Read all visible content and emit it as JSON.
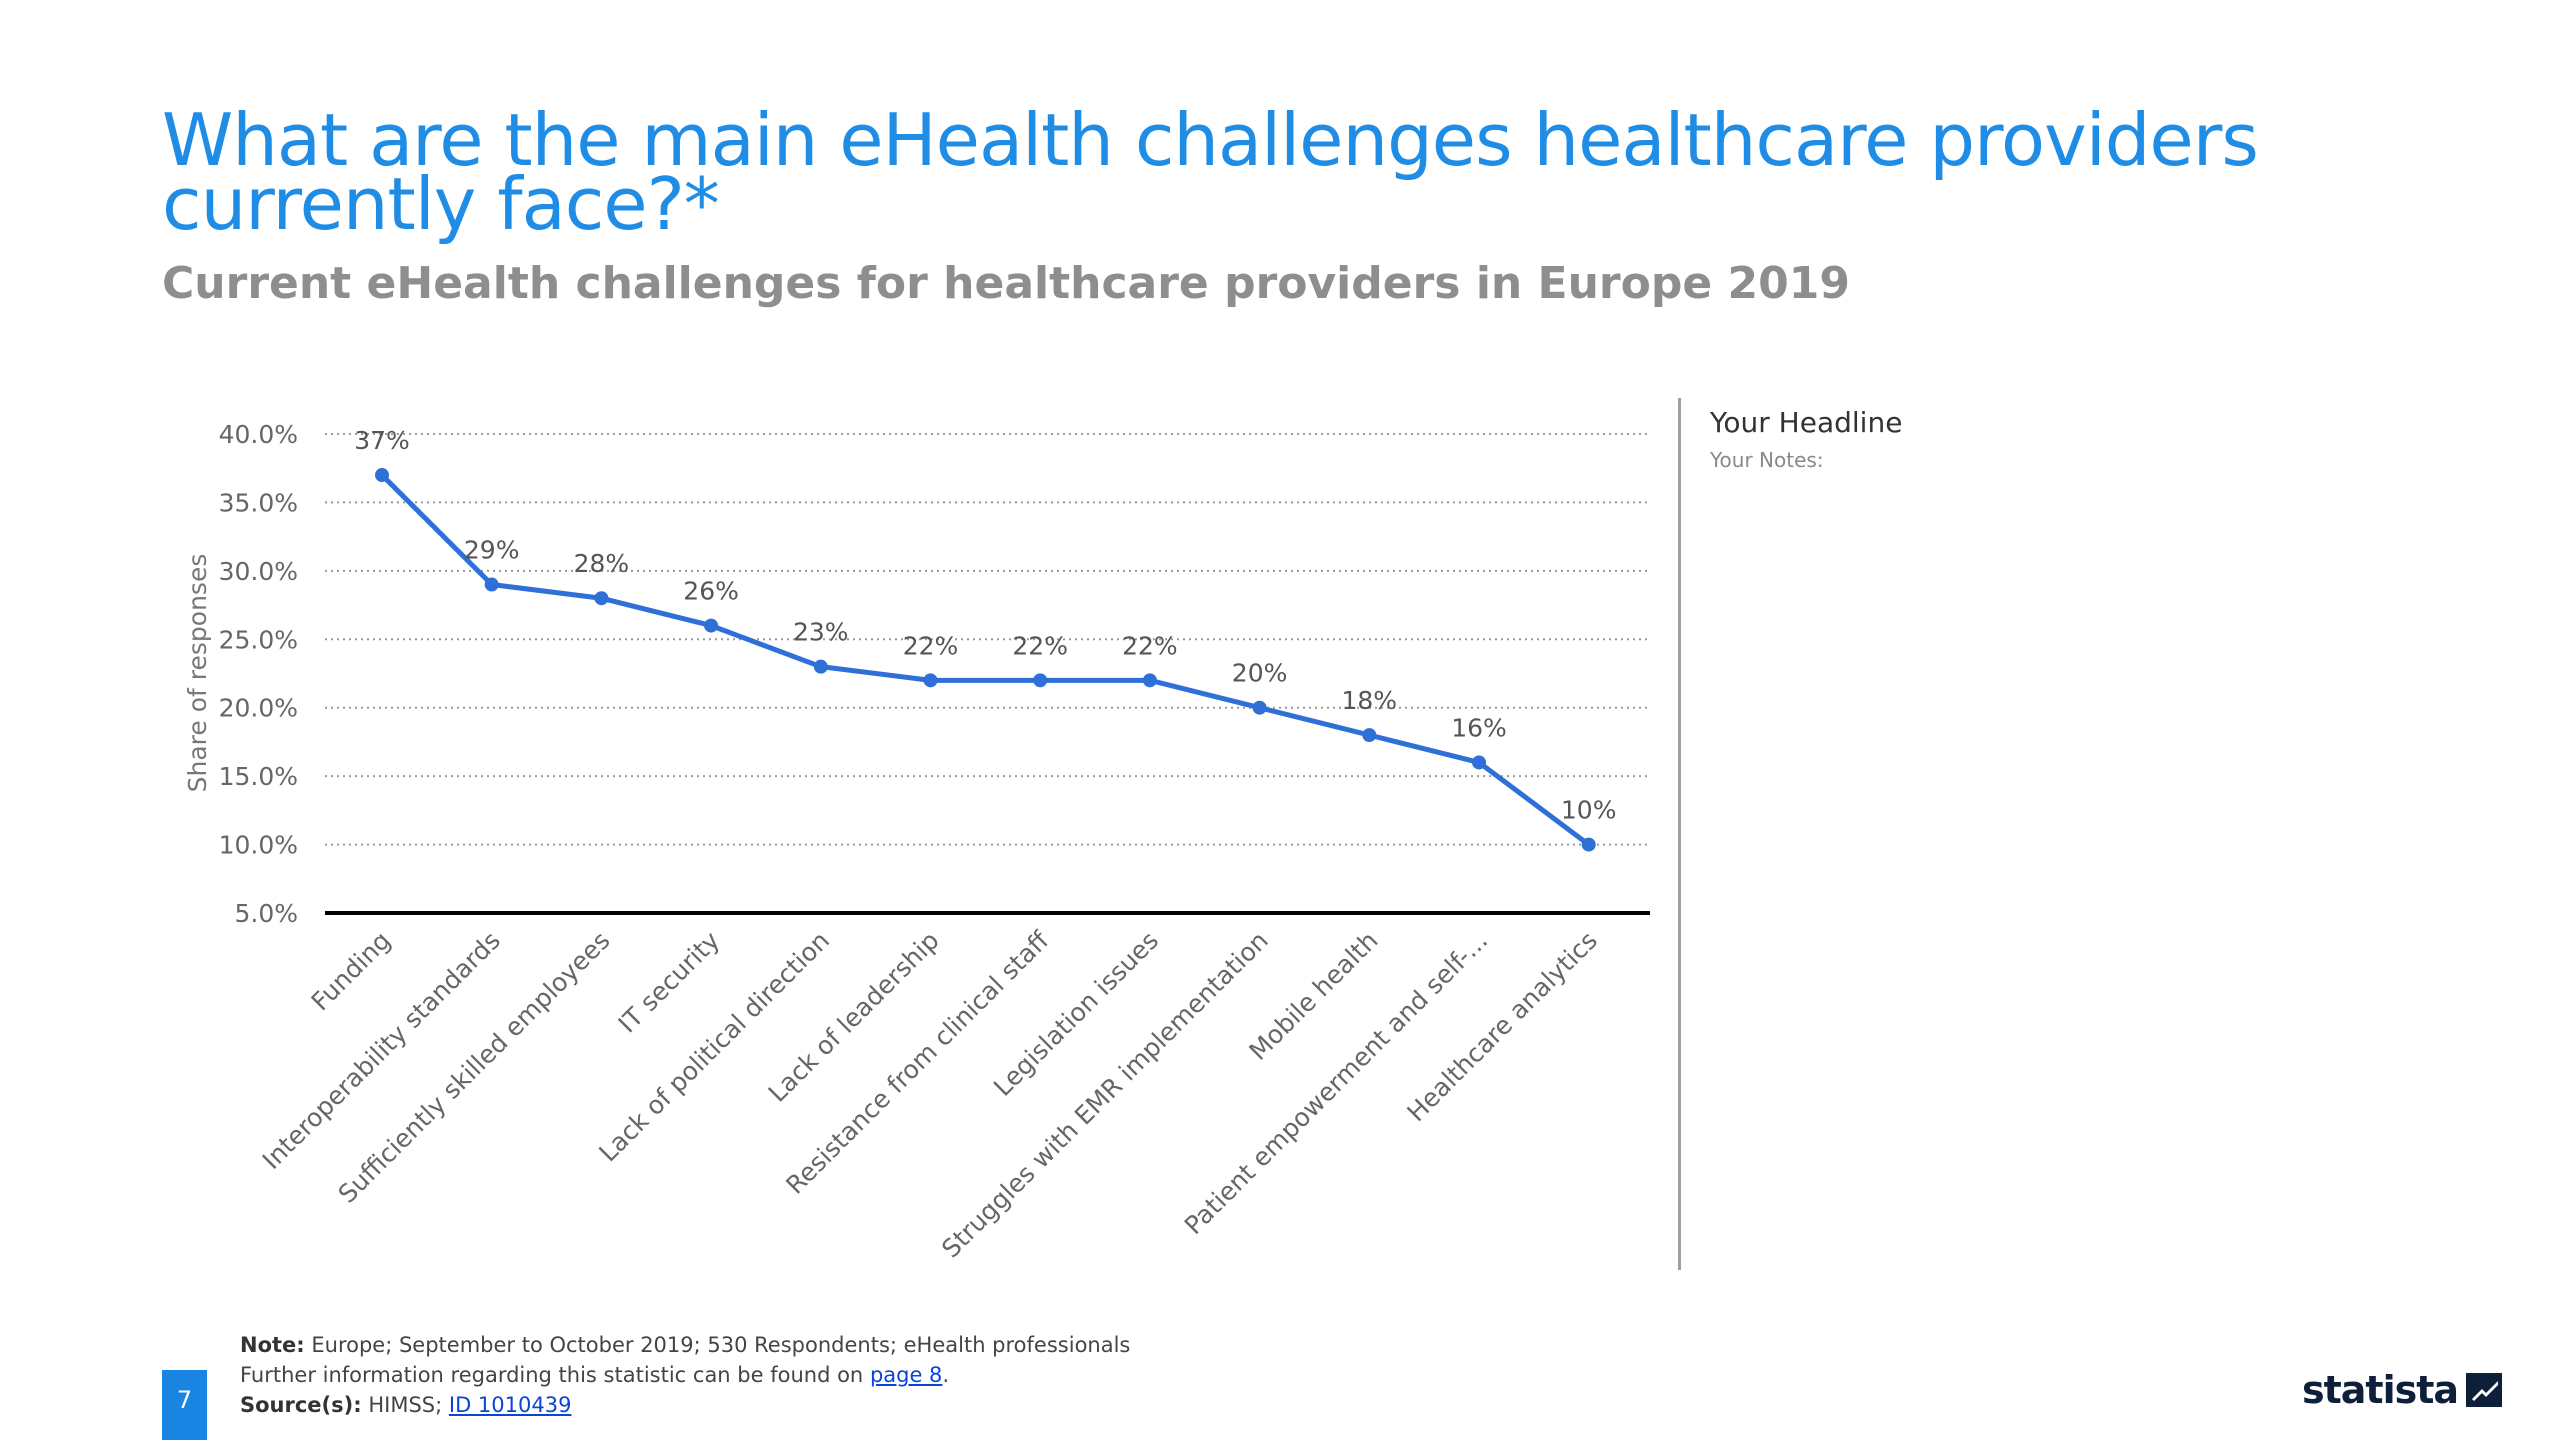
{
  "header": {
    "title": "What are the main eHealth challenges healthcare providers currently face?*",
    "subtitle": "Current eHealth challenges for healthcare providers in Europe 2019"
  },
  "notes_panel": {
    "headline": "Your Headline",
    "notes": "Your Notes:"
  },
  "footer": {
    "note_label": "Note:",
    "note_text": "Europe; September to October 2019; 530 Respondents; eHealth professionals",
    "further_info": "Further information regarding this statistic can be found on",
    "page_link": "page 8",
    "sources_label": "Source(s):",
    "sources_text": "HIMSS;",
    "id_link": "ID 1010439",
    "page_number": "7"
  },
  "logo": {
    "text": "statista"
  },
  "colors": {
    "accent": "#1f8ce6",
    "line": "#2e6fd8",
    "axis": "#000000"
  },
  "chart_data": {
    "type": "line",
    "title": "",
    "xlabel": "",
    "ylabel": "Share of responses",
    "categories": [
      "Funding",
      "Interoperability standards",
      "Sufficiently skilled employees",
      "IT security",
      "Lack of political direction",
      "Lack of leadership",
      "Resistance from clinical staff",
      "Legislation issues",
      "Struggles with EMR implementation",
      "Mobile health",
      "Patient empowerment and self-...",
      "Healthcare analytics"
    ],
    "values": [
      37,
      29,
      28,
      26,
      23,
      22,
      22,
      22,
      20,
      18,
      16,
      10
    ],
    "data_labels": [
      "37%",
      "29%",
      "28%",
      "26%",
      "23%",
      "22%",
      "22%",
      "22%",
      "20%",
      "18%",
      "16%",
      "10%"
    ],
    "yticks": [
      "5.0%",
      "10.0%",
      "15.0%",
      "20.0%",
      "25.0%",
      "30.0%",
      "35.0%",
      "40.0%"
    ],
    "ytick_values": [
      5,
      10,
      15,
      20,
      25,
      30,
      35,
      40
    ],
    "ylim": [
      5,
      40
    ],
    "grid": true
  }
}
